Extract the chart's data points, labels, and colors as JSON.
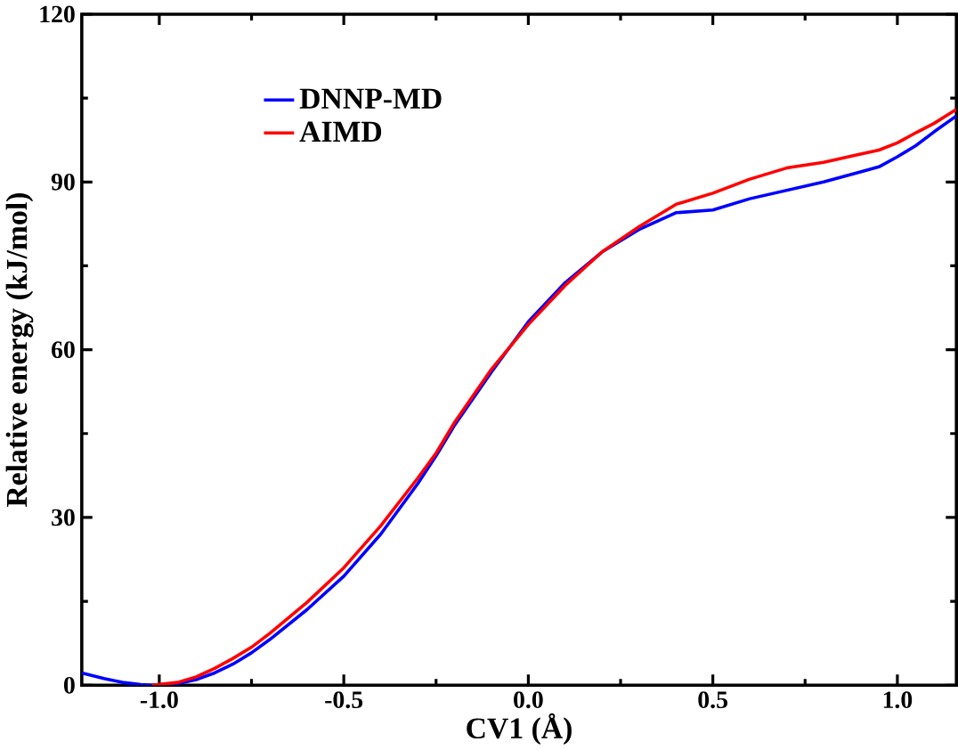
{
  "chart_data": {
    "type": "line",
    "xlabel": "CV1 (Å)",
    "ylabel": "Relative energy (kJ/mol)",
    "xlim": [
      -1.21,
      1.16
    ],
    "ylim": [
      0,
      120
    ],
    "xticks": [
      {
        "value": -1,
        "label": "-1.0"
      },
      -0.5,
      {
        "value": 0,
        "label": "0.0"
      },
      0.5,
      {
        "value": 1,
        "label": "1.0"
      }
    ],
    "yticks": [
      0,
      30,
      60,
      90,
      120
    ],
    "legend": "top left",
    "line_style": "solid",
    "marker": "none",
    "series": [
      {
        "name": "DNNP-MD",
        "color": "#0000ff",
        "x": [
          -1.21,
          -1.15,
          -1.1,
          -1.05,
          -1.02,
          -0.95,
          -0.9,
          -0.85,
          -0.8,
          -0.75,
          -0.7,
          -0.6,
          -0.5,
          -0.4,
          -0.3,
          -0.25,
          -0.2,
          -0.1,
          0.0,
          0.1,
          0.2,
          0.3,
          0.4,
          0.5,
          0.6,
          0.7,
          0.8,
          0.9,
          0.95,
          1.0,
          1.05,
          1.1,
          1.16
        ],
        "values": [
          2.2,
          1.2,
          0.5,
          0.1,
          0,
          0.3,
          1,
          2.2,
          3.8,
          5.8,
          8.2,
          13.5,
          19.5,
          27,
          36,
          41,
          46.5,
          56,
          65,
          72,
          77.5,
          81.5,
          84.5,
          85,
          87,
          88.5,
          90,
          91.8,
          92.7,
          94.5,
          96.5,
          99,
          101.8
        ]
      },
      {
        "name": "AIMD",
        "color": "#ff0000",
        "x": [
          -1.02,
          -0.95,
          -0.9,
          -0.85,
          -0.8,
          -0.75,
          -0.7,
          -0.6,
          -0.5,
          -0.4,
          -0.3,
          -0.25,
          -0.2,
          -0.1,
          0.0,
          0.1,
          0.2,
          0.3,
          0.4,
          0.5,
          0.6,
          0.7,
          0.8,
          0.9,
          0.95,
          1.0,
          1.05,
          1.1,
          1.16
        ],
        "values": [
          0,
          0.5,
          1.5,
          3,
          4.8,
          6.8,
          9.3,
          14.8,
          21,
          28.5,
          37,
          41.5,
          47,
          56.5,
          64.5,
          71.5,
          77.5,
          82,
          86,
          88,
          90.5,
          92.5,
          93.5,
          95,
          95.7,
          97,
          98.8,
          100.5,
          103
        ]
      }
    ]
  }
}
